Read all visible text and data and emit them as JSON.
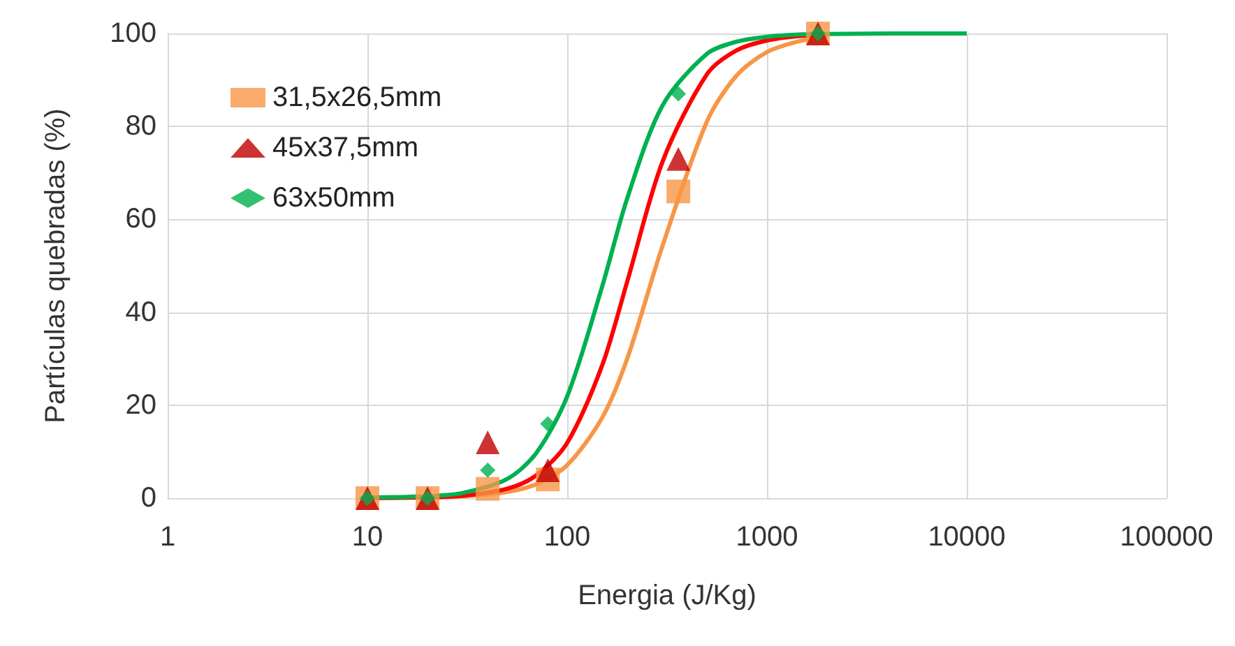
{
  "chart_data": {
    "type": "scatter",
    "xlabel": "Energia (J/Kg)",
    "ylabel": "Partículas quebradas (%)",
    "log": "x",
    "xlim": [
      1,
      100000
    ],
    "xticks": [
      1,
      10,
      100,
      1000,
      10000,
      100000
    ],
    "ylim": [
      0,
      100
    ],
    "yticks": [
      0,
      20,
      40,
      60,
      80,
      100
    ],
    "grid": true,
    "legend": "top left",
    "series": [
      {
        "name": "31,5x26,5mm",
        "color": "#f79646",
        "marker": "square",
        "x": [
          10,
          20,
          40,
          80,
          360,
          1800
        ],
        "values": [
          0,
          0,
          2,
          4,
          66,
          100
        ]
      },
      {
        "name": "45x37,5mm",
        "color": "#c00000",
        "marker": "triangle",
        "x": [
          10,
          20,
          40,
          80,
          360,
          1800
        ],
        "values": [
          0,
          0,
          12,
          6,
          73,
          100
        ]
      },
      {
        "name": "63x50mm",
        "color": "#00b050",
        "marker": "diamond",
        "x": [
          10,
          20,
          40,
          80,
          360,
          1800
        ],
        "values": [
          0,
          0,
          6,
          16,
          87,
          100
        ]
      },
      {
        "type": "line",
        "color": "#f79646",
        "marker": "none",
        "x": [
          10,
          20,
          30,
          50,
          70,
          100,
          150,
          200,
          300,
          500,
          700,
          1000,
          1500,
          2000
        ],
        "values": [
          0,
          0.1,
          0.4,
          1.3,
          3,
          7.1,
          17.4,
          30.1,
          54.3,
          81,
          90.8,
          96,
          98.5,
          99.3
        ]
      },
      {
        "type": "line",
        "color": "#ff0000",
        "marker": "none",
        "x": [
          10,
          20,
          30,
          50,
          70,
          100,
          150,
          200,
          300,
          500,
          700,
          1000,
          1500,
          2000
        ],
        "values": [
          0,
          0.2,
          0.5,
          2,
          4.9,
          11.9,
          28.7,
          46.7,
          72.4,
          91.2,
          96.3,
          98.5,
          99.5,
          99.8
        ]
      },
      {
        "type": "line",
        "color": "#00b050",
        "marker": "none",
        "x": [
          10,
          20,
          30,
          50,
          70,
          100,
          150,
          200,
          300,
          500,
          700,
          1000,
          1500,
          2000,
          5000,
          10000
        ],
        "values": [
          0.1,
          0.4,
          1.1,
          4.1,
          9.7,
          21.9,
          45.7,
          64.6,
          84.5,
          95.6,
          98.2,
          99.3,
          99.8,
          99.9,
          100,
          100
        ]
      }
    ]
  }
}
